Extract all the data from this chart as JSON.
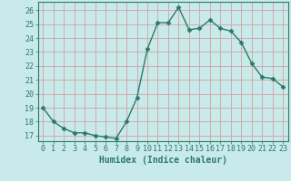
{
  "xlabel": "Humidex (Indice chaleur)",
  "x": [
    0,
    1,
    2,
    3,
    4,
    5,
    6,
    7,
    8,
    9,
    10,
    11,
    12,
    13,
    14,
    15,
    16,
    17,
    18,
    19,
    20,
    21,
    22,
    23
  ],
  "y": [
    19.0,
    18.0,
    17.5,
    17.2,
    17.2,
    17.0,
    16.9,
    16.8,
    18.0,
    19.7,
    23.2,
    25.1,
    25.1,
    26.2,
    24.6,
    24.7,
    25.3,
    24.7,
    24.5,
    23.7,
    22.2,
    21.2,
    21.1,
    20.5
  ],
  "line_color": "#2a7a6a",
  "marker": "D",
  "marker_size": 2.5,
  "bg_color": "#c8eaea",
  "grid_color": "#d4a0a0",
  "ylim": [
    16.6,
    26.6
  ],
  "xlim": [
    -0.5,
    23.5
  ],
  "yticks": [
    17,
    18,
    19,
    20,
    21,
    22,
    23,
    24,
    25,
    26
  ],
  "xticks": [
    0,
    1,
    2,
    3,
    4,
    5,
    6,
    7,
    8,
    9,
    10,
    11,
    12,
    13,
    14,
    15,
    16,
    17,
    18,
    19,
    20,
    21,
    22,
    23
  ],
  "tick_label_fontsize": 6.0,
  "xlabel_fontsize": 7.0,
  "line_width": 1.0
}
